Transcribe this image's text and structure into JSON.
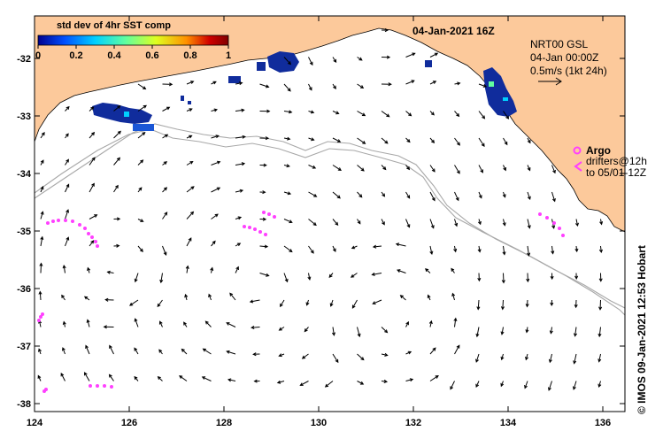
{
  "map": {
    "title": "04-Jan-2021 16Z",
    "colorbar": {
      "label": "std dev of 4hr SST comp",
      "ticks": [
        "0",
        "0.2",
        "0.4",
        "0.6",
        "0.8",
        "1"
      ],
      "colors": [
        "#00008f",
        "#0050ff",
        "#00d0ff",
        "#60ff9f",
        "#dfff20",
        "#ff9000",
        "#d00000",
        "#800000"
      ]
    },
    "current_info": {
      "line1": "NRT00 GSL",
      "line2": "04-Jan 00:00Z",
      "line3": "0.5m/s (1kt 24h)"
    },
    "legend": {
      "argo_label": "Argo",
      "drifters_line1": "drifters@12h",
      "drifters_line2": "to 05/01-12Z"
    },
    "x_axis_ticks": [
      "124",
      "126",
      "128",
      "130",
      "132",
      "134",
      "136"
    ],
    "y_axis_ticks": [
      "-32",
      "-33",
      "-34",
      "-35",
      "-36",
      "-37",
      "-38"
    ],
    "side_label": "© IMOS 09-Jan-2021 12:53 Hobart",
    "colors": {
      "land": "#fcc99b",
      "ssp_dark": "#102c9c",
      "argo": "#ff40ff",
      "bathymetry": "#a8a8a8"
    }
  }
}
